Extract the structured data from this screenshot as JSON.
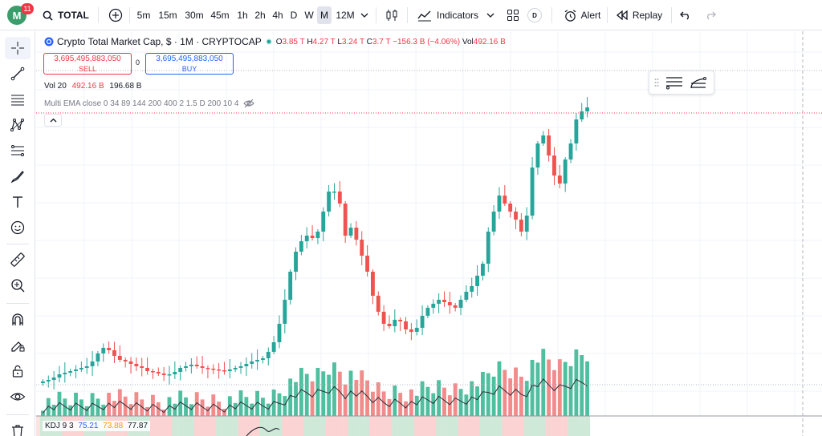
{
  "app": {
    "logo_letter": "M",
    "notification_count": "11",
    "accent_color": "#2962ff"
  },
  "toolbar": {
    "symbol": "TOTAL",
    "intervals": [
      "5m",
      "15m",
      "30m",
      "45m",
      "1h",
      "2h",
      "4h",
      "D",
      "W",
      "M",
      "12M"
    ],
    "selected_interval": "M",
    "indicators_label": "Indicators",
    "badge_label": "D",
    "alert_label": "Alert",
    "replay_label": "Replay"
  },
  "legend": {
    "title": "Crypto Total Market Cap, $ · 1M · CRYPTOCAP",
    "open_label": "O",
    "open": "3.85 T",
    "high_label": "H",
    "high": "4.27 T",
    "low_label": "L",
    "low": "3.24 T",
    "close_label": "C",
    "close": "3.7 T",
    "change": "−156.3 B (−4.06%)",
    "vol_label": "Vol",
    "vol": "492.16 B"
  },
  "trade": {
    "sell_price": "3,695,495,883,050",
    "sell_label": "SELL",
    "spread": "0",
    "buy_price": "3,695,495,883,050",
    "buy_label": "BUY"
  },
  "volume_indicator": {
    "name": "Vol 20",
    "value1": "492.16 B",
    "value2": "196.68 B"
  },
  "ema_indicator": {
    "text": "Multi EMA close 0 34 89 144 200 400 2 1.5 D 200 10 4"
  },
  "kdj_indicator": {
    "name": "KDJ 9 3",
    "k": "75.21",
    "d": "73.88",
    "j": "77.87"
  },
  "colors": {
    "up": "#26a69a",
    "down": "#ef5350",
    "up_volume": "#4fbf9f",
    "down_volume": "#f28b8b"
  }
}
